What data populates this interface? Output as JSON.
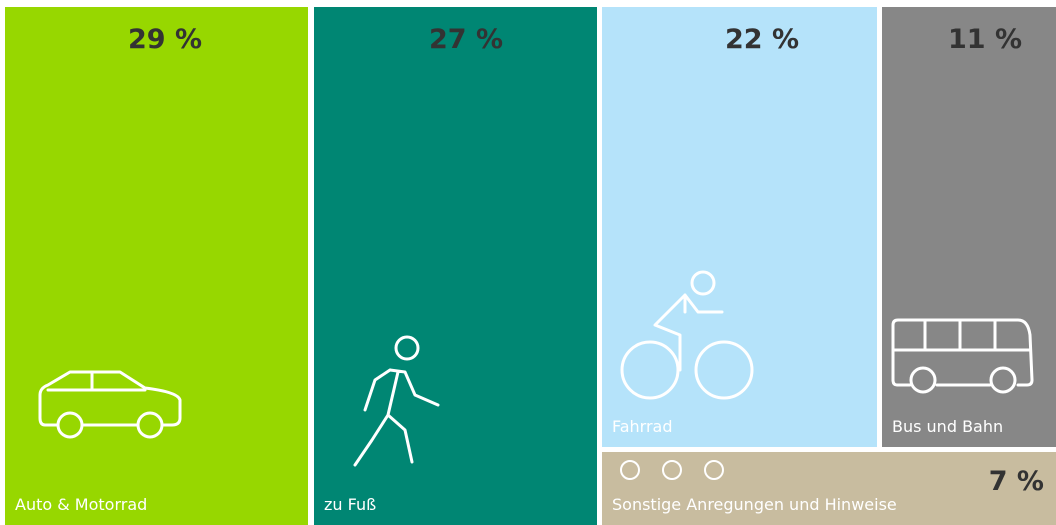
{
  "chart_data": {
    "type": "treemap",
    "categories": [
      "Auto & Motorrad",
      "zu Fuß",
      "Fahrrad",
      "Bus und Bahn",
      "Sonstige Anregungen und Hinweise"
    ],
    "values": [
      29,
      27,
      22,
      11,
      7
    ],
    "value_labels": [
      "29 %",
      "27 %",
      "22 %",
      "11 %",
      "7 %"
    ],
    "colors": [
      "#97d700",
      "#008673",
      "#b5e3fa",
      "#878787",
      "#c8bc9f"
    ]
  }
}
